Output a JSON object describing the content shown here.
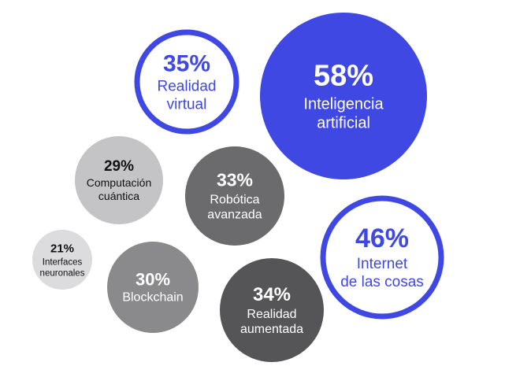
{
  "chart_data": {
    "type": "bubble",
    "items": [
      {
        "label_lines": [
          "Inteligencia",
          "artificial"
        ],
        "pct_text": "58%",
        "value": 58,
        "fill": "#3f48e3",
        "stroke": null,
        "text_color": "#ffffff"
      },
      {
        "label_lines": [
          "Internet",
          "de las cosas"
        ],
        "pct_text": "46%",
        "value": 46,
        "fill": "#ffffff",
        "stroke": "#3f48e3",
        "text_color": "#3f48e3"
      },
      {
        "label_lines": [
          "Realidad",
          "virtual"
        ],
        "pct_text": "35%",
        "value": 35,
        "fill": "#ffffff",
        "stroke": "#3f48e3",
        "text_color": "#3f48e3"
      },
      {
        "label_lines": [
          "Realidad",
          "aumentada"
        ],
        "pct_text": "34%",
        "value": 34,
        "fill": "#555557",
        "stroke": null,
        "text_color": "#ffffff"
      },
      {
        "label_lines": [
          "Robótica",
          "avanzada"
        ],
        "pct_text": "33%",
        "value": 33,
        "fill": "#6b6b6d",
        "stroke": null,
        "text_color": "#ffffff"
      },
      {
        "label_lines": [
          "Blockchain"
        ],
        "pct_text": "30%",
        "value": 30,
        "fill": "#8a8a8c",
        "stroke": null,
        "text_color": "#ffffff"
      },
      {
        "label_lines": [
          "Computación",
          "cuántica"
        ],
        "pct_text": "29%",
        "value": 29,
        "fill": "#c4c4c6",
        "stroke": null,
        "text_color": "#111111"
      },
      {
        "label_lines": [
          "Interfaces",
          "neuronales"
        ],
        "pct_text": "21%",
        "value": 21,
        "fill": "#dcdcde",
        "stroke": null,
        "text_color": "#111111"
      }
    ]
  }
}
